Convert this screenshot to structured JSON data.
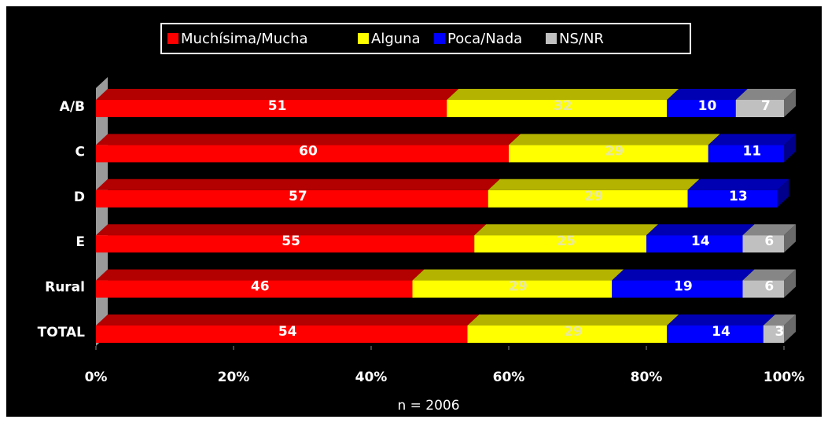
{
  "chart_data": {
    "type": "stacked_barh",
    "categories": [
      "A/B",
      "C",
      "D",
      "E",
      "Rural",
      "TOTAL"
    ],
    "series": [
      {
        "name": "Muchísima/Mucha",
        "color": "#ff0000",
        "values": [
          51,
          60,
          57,
          55,
          46,
          54
        ]
      },
      {
        "name": "Alguna",
        "color": "#ffff00",
        "values": [
          32,
          29,
          29,
          25,
          29,
          29
        ]
      },
      {
        "name": "Poca/Nada",
        "color": "#0000ff",
        "values": [
          10,
          11,
          13,
          14,
          19,
          14
        ]
      },
      {
        "name": "NS/NR",
        "color": "#c0c0c0",
        "values": [
          7,
          null,
          null,
          6,
          6,
          3
        ]
      }
    ],
    "xlim": [
      0,
      100
    ],
    "xticks": [
      {
        "value": 0,
        "label": "0%"
      },
      {
        "value": 20,
        "label": "20%"
      },
      {
        "value": 40,
        "label": "40%"
      },
      {
        "value": 60,
        "label": "60%"
      },
      {
        "value": 80,
        "label": "80%"
      },
      {
        "value": 100,
        "label": "100%"
      }
    ],
    "xlabel": "n = 2006",
    "legend": "top"
  }
}
